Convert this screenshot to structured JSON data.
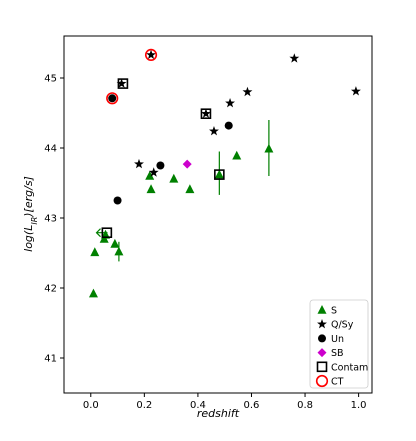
{
  "chart_data": {
    "type": "scatter",
    "title": "",
    "xlabel": "redshift",
    "ylabel": "log(L_IR)[erg/s]",
    "ylabel_display": {
      "prefix": "log(L",
      "sub": "IR",
      "suffix": ")[erg/s]"
    },
    "xlim": [
      -0.1,
      1.05
    ],
    "ylim": [
      40.5,
      45.6
    ],
    "xticks": [
      0.0,
      0.2,
      0.4,
      0.6,
      0.8,
      1.0
    ],
    "xtick_labels": [
      "0.0",
      "0.2",
      "0.4",
      "0.6",
      "0.8",
      "1.0"
    ],
    "yticks": [
      41,
      42,
      43,
      44,
      45
    ],
    "ytick_labels": [
      "41",
      "42",
      "43",
      "44",
      "45"
    ],
    "grid": false,
    "legend_position": "lower-right",
    "colors": {
      "S": "#008000",
      "Q/Sy": "#000000",
      "Un": "#000000",
      "SB": "#cc00cc",
      "CT": "#ff0000"
    },
    "series": [
      {
        "name": "S",
        "marker": "triangle",
        "points": [
          {
            "x": 0.01,
            "y": 41.92
          },
          {
            "x": 0.015,
            "y": 42.51
          },
          {
            "x": 0.05,
            "y": 42.7
          },
          {
            "x": 0.055,
            "y": 42.76
          },
          {
            "x": 0.09,
            "y": 42.63
          },
          {
            "x": 0.105,
            "y": 42.52
          },
          {
            "x": 0.22,
            "y": 43.6
          },
          {
            "x": 0.225,
            "y": 43.41
          },
          {
            "x": 0.31,
            "y": 43.56
          },
          {
            "x": 0.37,
            "y": 43.41
          },
          {
            "x": 0.48,
            "y": 43.62
          },
          {
            "x": 0.545,
            "y": 43.89
          },
          {
            "x": 0.665,
            "y": 43.99
          }
        ]
      },
      {
        "name": "Q/Sy",
        "marker": "star",
        "points": [
          {
            "x": 0.115,
            "y": 44.92
          },
          {
            "x": 0.225,
            "y": 45.33
          },
          {
            "x": 0.18,
            "y": 43.77
          },
          {
            "x": 0.235,
            "y": 43.65
          },
          {
            "x": 0.43,
            "y": 44.49
          },
          {
            "x": 0.46,
            "y": 44.24
          },
          {
            "x": 0.52,
            "y": 44.64
          },
          {
            "x": 0.585,
            "y": 44.8
          },
          {
            "x": 0.76,
            "y": 45.28
          },
          {
            "x": 0.99,
            "y": 44.81
          }
        ]
      },
      {
        "name": "Un",
        "marker": "circle",
        "points": [
          {
            "x": 0.08,
            "y": 44.71
          },
          {
            "x": 0.1,
            "y": 43.25
          },
          {
            "x": 0.26,
            "y": 43.75
          },
          {
            "x": 0.515,
            "y": 44.32
          }
        ]
      },
      {
        "name": "SB",
        "marker": "diamond",
        "points": [
          {
            "x": 0.36,
            "y": 43.77
          }
        ]
      },
      {
        "name": "Contam",
        "marker": "open-square",
        "points": [
          {
            "x": 0.06,
            "y": 42.79
          },
          {
            "x": 0.12,
            "y": 44.92
          },
          {
            "x": 0.43,
            "y": 44.49
          },
          {
            "x": 0.48,
            "y": 43.62
          }
        ]
      },
      {
        "name": "CT",
        "marker": "open-circle",
        "points": [
          {
            "x": 0.08,
            "y": 44.71
          },
          {
            "x": 0.225,
            "y": 45.33
          }
        ]
      }
    ],
    "error_bars": [
      {
        "x": 0.105,
        "y_low": 42.38,
        "y_high": 42.66
      },
      {
        "x": 0.48,
        "y_low": 43.33,
        "y_high": 43.95
      },
      {
        "x": 0.665,
        "y_low": 43.6,
        "y_high": 44.4
      }
    ],
    "upper_limits": [
      {
        "x": 0.055,
        "y": 42.79
      }
    ]
  }
}
